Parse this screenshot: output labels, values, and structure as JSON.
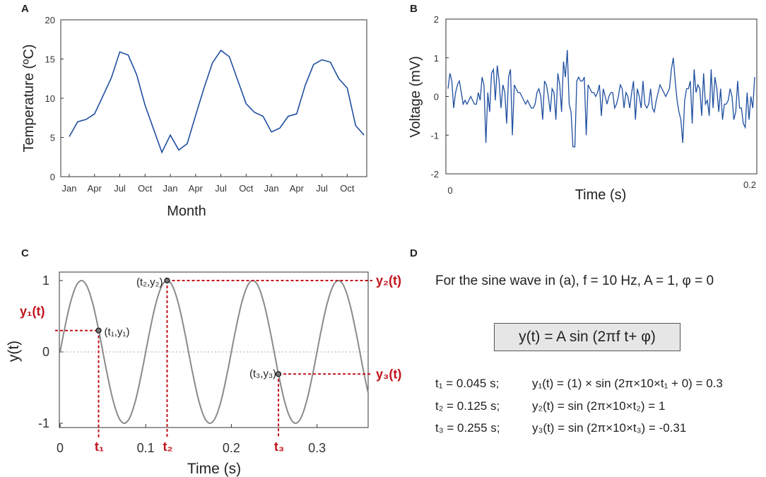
{
  "chart_data": [
    {
      "panel": "A",
      "type": "line",
      "xlabel": "Month",
      "ylabel": "Temperature (ºC)",
      "ylim": [
        0,
        20
      ],
      "yticks": [
        "0",
        "5",
        "10",
        "15",
        "20"
      ],
      "xtick_labels": [
        "Jan",
        "Apr",
        "Jul",
        "Oct",
        "Jan",
        "Apr",
        "Jul",
        "Oct",
        "Jan",
        "Apr",
        "Jul",
        "Oct"
      ],
      "x": [
        1,
        2,
        3,
        4,
        5,
        6,
        7,
        8,
        9,
        10,
        11,
        12,
        13,
        14,
        15,
        16,
        17,
        18,
        19,
        20,
        21,
        22,
        23,
        24,
        25,
        26,
        27,
        28,
        29,
        30,
        31,
        32,
        33,
        34,
        35,
        36
      ],
      "values": [
        5.1,
        7.0,
        7.3,
        8.0,
        10.3,
        12.6,
        15.9,
        15.5,
        13.0,
        9.1,
        6.1,
        3.1,
        5.3,
        3.4,
        4.2,
        7.8,
        11.3,
        14.5,
        16.1,
        15.3,
        12.3,
        9.3,
        8.2,
        7.7,
        5.7,
        6.2,
        7.7,
        8.0,
        11.6,
        14.3,
        14.9,
        14.6,
        12.5,
        11.3,
        6.5,
        5.3
      ],
      "line_color": "#1f4fa0"
    },
    {
      "panel": "B",
      "type": "line",
      "xlabel": "Time (s)",
      "ylabel": "Voltage (mV)",
      "ylim": [
        -2,
        2
      ],
      "xlim": [
        0,
        0.2
      ],
      "yticks": [
        "-2",
        "-1",
        "0",
        "1",
        "2"
      ],
      "xtick_labels": [
        "0",
        "0.2"
      ],
      "values": [
        0.2,
        0.6,
        0.4,
        -0.3,
        0.1,
        0.3,
        0.4,
        0.1,
        -0.2,
        -0.1,
        -0.2,
        -0.1,
        0,
        -0.1,
        -0.2,
        -0.2,
        0.1,
        -0.1,
        0.5,
        0.3,
        -1.2,
        0.1,
        -0.4,
        0.6,
        0.7,
        -0.1,
        0.8,
        0.4,
        -0.3,
        0.3,
        0.1,
        -0.7,
        0.5,
        0.7,
        -1,
        0.3,
        0.2,
        0.1,
        0.1,
        0,
        -0.1,
        -0.2,
        -0.1,
        -0.2,
        -0.3,
        -0.3,
        -0.2,
        0.1,
        0.2,
        0,
        -0.6,
        0.4,
        0.3,
        0,
        -0.4,
        0.2,
        0.1,
        -0.6,
        0.6,
        0.3,
        -0.4,
        0.9,
        0.5,
        1.2,
        -0.2,
        -0.4,
        -1.3,
        -1.3,
        0.4,
        0.5,
        0.4,
        0.4,
        0.5,
        -1,
        0.3,
        0.2,
        0.1,
        0.1,
        0,
        0.1,
        0.3,
        -0.5,
        0.2,
        0,
        -0.2,
        0,
        0.1,
        0.1,
        -0.3,
        -0.2,
        0,
        0.3,
        0.2,
        -0.3,
        0.1,
        0,
        -0.3,
        0.1,
        0.4,
        -0.6,
        0.2,
        0,
        -0.3,
        0.4,
        -0.2,
        -0.3,
        -0.2,
        0.2,
        -0.3,
        -0.4,
        -0.1,
        0.1,
        0.3,
        0.2,
        0.1,
        0,
        0.1,
        0.2,
        0.7,
        1,
        0.4,
        -0.1,
        -0.4,
        -0.6,
        -1.2,
        -0.1,
        0.2,
        0.2,
        0.4,
        -0.7,
        0.7,
        0.1,
        0.3,
        0.2,
        -0.5,
        0.6,
        -0.2,
        -0.1,
        -0.5,
        0.7,
        -0.3,
        0.5,
        0.2,
        -0.4,
        0.2,
        -0.6,
        -0.2,
        -0.2,
        -0.1,
        0.2,
        0,
        -0.6,
        -0.4,
        0.4,
        -0.3,
        -0.3,
        -0.7,
        -0.8,
        0.1,
        -0.6,
        0,
        -0.3,
        0.5
      ],
      "line_color": "#1f4fa0"
    },
    {
      "panel": "C",
      "type": "line",
      "xlabel": "Time (s)",
      "ylabel": "y(t)",
      "xlim": [
        0,
        0.36
      ],
      "ylim": [
        -1.1,
        1.1
      ],
      "xticks": [
        0,
        0.1,
        0.2,
        0.3
      ],
      "xtick_labels": [
        "0",
        "0.1",
        "0.2",
        "0.3"
      ],
      "yticks": [
        -1,
        0,
        1
      ],
      "ytick_labels": [
        "-1",
        "0",
        "1"
      ],
      "function": "sin(2π·10·t)",
      "frequency_hz": 10,
      "amplitude": 1,
      "line_color": "#8a8a8a",
      "guide_color": "#c0121b",
      "points": [
        {
          "t": 0.045,
          "y": 0.3,
          "label": "(t₁,y₁)",
          "t_label": "t₁",
          "y_label": "y₁(t)"
        },
        {
          "t": 0.125,
          "y": 1,
          "label": "(t₂,y₂)",
          "t_label": "t₂",
          "y_label": "y₂(t)"
        },
        {
          "t": 0.255,
          "y": -0.31,
          "label": "(t₃,y₃)",
          "t_label": "t₃",
          "y_label": "y₃(t)"
        }
      ]
    }
  ],
  "panel_labels": {
    "a": "A",
    "b": "B",
    "c": "C",
    "d": "D"
  },
  "panel_d": {
    "intro": "For the sine wave in (a), f = 10 Hz, A = 1, φ = 0",
    "equation": "y(t) = A sin (2πf t+ φ)",
    "rows": [
      {
        "t": "t₁ = 0.045 s;",
        "expr": "y₁(t) = (1) × sin (2π×10×t₁ + 0) = 0.3"
      },
      {
        "t": "t₂ = 0.125 s;",
        "expr": "y₂(t) = sin (2π×10×t₂) = 1"
      },
      {
        "t": "t₃ = 0.255 s;",
        "expr": "y₃(t) = sin (2π×10×t₃) = -0.31"
      }
    ]
  }
}
